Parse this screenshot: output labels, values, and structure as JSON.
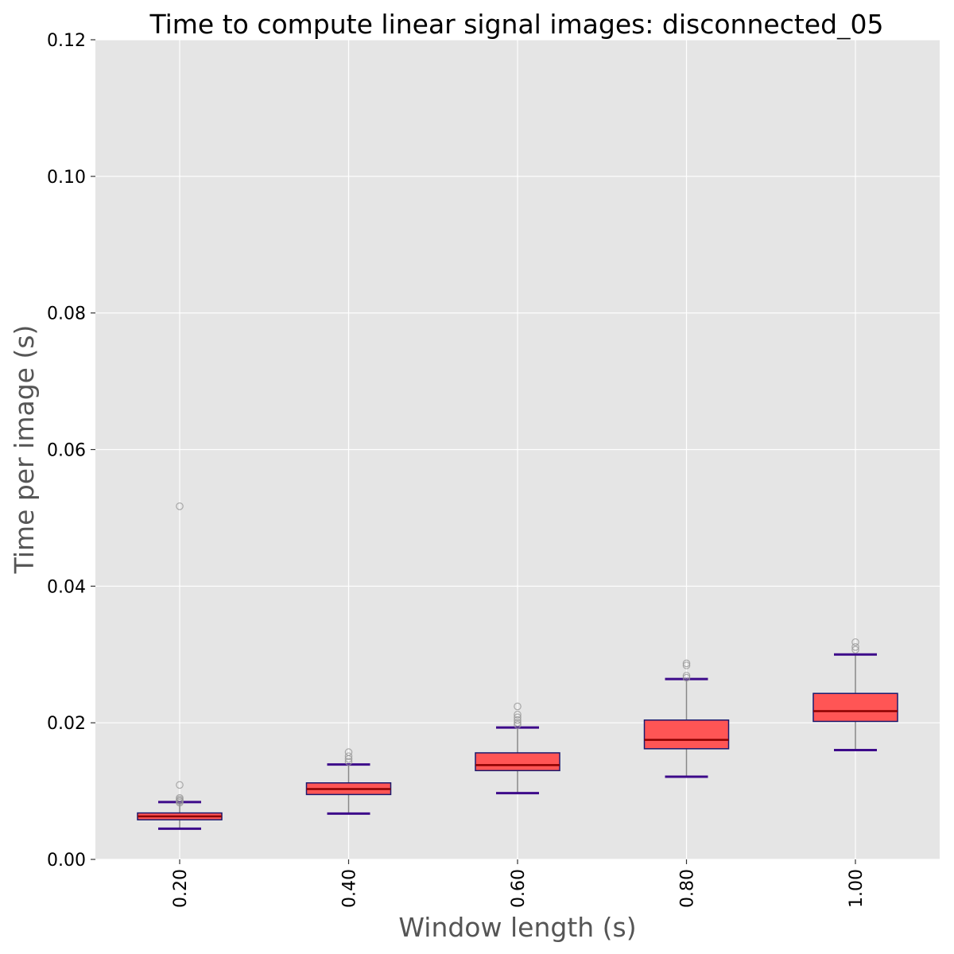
{
  "chart_data": {
    "type": "box",
    "title": "Time to compute linear signal images: disconnected_05",
    "xlabel": "Window length (s)",
    "ylabel": "Time per image (s)",
    "ylim": [
      0,
      0.12
    ],
    "yticks": [
      "0.00",
      "0.02",
      "0.04",
      "0.06",
      "0.08",
      "0.10",
      "0.12"
    ],
    "categories": [
      "0.20",
      "0.40",
      "0.60",
      "0.80",
      "1.00"
    ],
    "grid": true,
    "colors": {
      "background": "#e5e5e5",
      "grid": "#ffffff",
      "box_fill": "#ff5555",
      "box_edge": "#1a1a6e",
      "median": "#8b0000",
      "whisker_cap": "#3d0a8a",
      "whisker_line": "#888888",
      "outlier": "#999999"
    },
    "boxes": [
      {
        "category": "0.20",
        "whisker_low": 0.0045,
        "q1": 0.0058,
        "median": 0.0063,
        "q3": 0.0068,
        "whisker_high": 0.0084,
        "outliers": [
          0.0083,
          0.0085,
          0.0086,
          0.0088,
          0.009,
          0.0109,
          0.0517
        ]
      },
      {
        "category": "0.40",
        "whisker_low": 0.0067,
        "q1": 0.0095,
        "median": 0.0103,
        "q3": 0.0112,
        "whisker_high": 0.0139,
        "outliers": [
          0.0143,
          0.0147,
          0.0151,
          0.0157
        ]
      },
      {
        "category": "0.60",
        "whisker_low": 0.0097,
        "q1": 0.013,
        "median": 0.0138,
        "q3": 0.0156,
        "whisker_high": 0.0193,
        "outliers": [
          0.0197,
          0.02,
          0.0204,
          0.0208,
          0.0212,
          0.0224
        ]
      },
      {
        "category": "0.80",
        "whisker_low": 0.0121,
        "q1": 0.0162,
        "median": 0.0175,
        "q3": 0.0204,
        "whisker_high": 0.0264,
        "outliers": [
          0.0266,
          0.0269,
          0.0284,
          0.0287
        ]
      },
      {
        "category": "1.00",
        "whisker_low": 0.016,
        "q1": 0.0202,
        "median": 0.0217,
        "q3": 0.0243,
        "whisker_high": 0.03,
        "outliers": [
          0.0307,
          0.0311,
          0.0318
        ]
      }
    ]
  }
}
